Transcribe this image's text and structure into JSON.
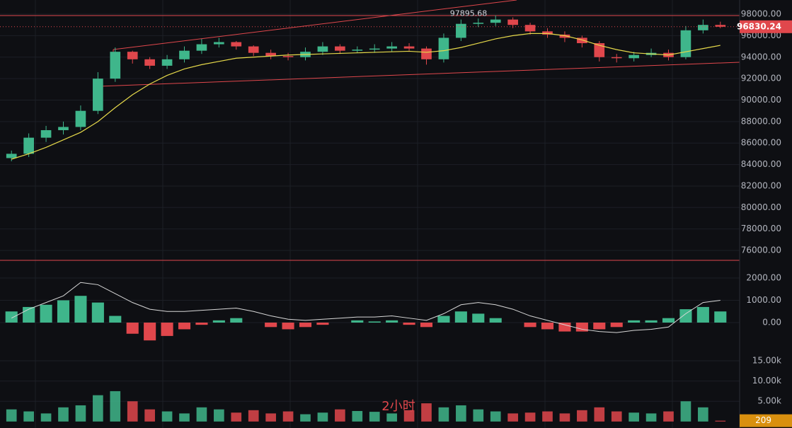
{
  "chart_data": [
    {
      "type": "candlestick",
      "grid": true,
      "up_color": "#3fb68b",
      "down_color": "#e0474c",
      "ma_color": "#e6d94a",
      "ylim": [
        75080,
        99320
      ],
      "yticks": [
        {
          "value": 76000,
          "label": "76000.00"
        },
        {
          "value": 78000,
          "label": "78000.00"
        },
        {
          "value": 80000,
          "label": "80000.00"
        },
        {
          "value": 82000,
          "label": "82000.00"
        },
        {
          "value": 84000,
          "label": "84000.00"
        },
        {
          "value": 86000,
          "label": "86000.00"
        },
        {
          "value": 88000,
          "label": "88000.00"
        },
        {
          "value": 90000,
          "label": "90000.00"
        },
        {
          "value": 92000,
          "label": "92000.00"
        },
        {
          "value": 94000,
          "label": "94000.00"
        },
        {
          "value": 96000,
          "label": "96000.00"
        },
        {
          "value": 98000,
          "label": "98000.00"
        }
      ],
      "open": [
        84600,
        85000,
        86500,
        87200,
        87500,
        89000,
        92000,
        94500,
        93800,
        93200,
        93800,
        94600,
        95200,
        95400,
        95000,
        94400,
        94100,
        94000,
        94500,
        95000,
        94600,
        94700,
        94800,
        95000,
        94800,
        93800,
        95800,
        97100,
        97200,
        97500,
        97000,
        96400,
        96100,
        95800,
        95300,
        94000,
        93900,
        94200,
        94400,
        94000,
        96500,
        97000
      ],
      "high": [
        85300,
        86900,
        87600,
        88000,
        89500,
        92600,
        94900,
        94600,
        94000,
        94200,
        95000,
        95700,
        95800,
        95500,
        95100,
        94700,
        94400,
        94900,
        95400,
        95200,
        95000,
        95200,
        95400,
        95300,
        95000,
        96200,
        97500,
        97600,
        97895.68,
        97700,
        97200,
        96700,
        96400,
        96000,
        95500,
        94300,
        94500,
        94800,
        94700,
        96900,
        97500,
        97300
      ],
      "low": [
        84300,
        84700,
        86100,
        86800,
        87200,
        88700,
        91700,
        93400,
        92900,
        92900,
        93500,
        94300,
        94900,
        94700,
        94100,
        93800,
        93700,
        93700,
        94200,
        94300,
        94400,
        94400,
        94500,
        94600,
        93300,
        93500,
        95500,
        96800,
        96900,
        96700,
        96100,
        95800,
        95400,
        94900,
        93600,
        93500,
        93600,
        94000,
        93700,
        93800,
        96200,
        96700
      ],
      "close": [
        85000,
        86500,
        87200,
        87500,
        89000,
        92000,
        94500,
        93800,
        93200,
        93800,
        94600,
        95200,
        95400,
        95000,
        94400,
        94100,
        94000,
        94500,
        95000,
        94600,
        94700,
        94800,
        95000,
        94800,
        93800,
        95800,
        97100,
        97200,
        97500,
        97000,
        96400,
        96100,
        95800,
        95300,
        94000,
        93900,
        94200,
        94400,
        94000,
        96500,
        97000,
        96830.24
      ],
      "ma": [
        84500,
        85000,
        85600,
        86300,
        87000,
        88000,
        89300,
        90500,
        91500,
        92300,
        92900,
        93300,
        93600,
        93900,
        94000,
        94100,
        94200,
        94250,
        94300,
        94350,
        94400,
        94450,
        94500,
        94550,
        94450,
        94600,
        94900,
        95300,
        95700,
        96000,
        96200,
        96200,
        96000,
        95600,
        95100,
        94700,
        94400,
        94300,
        94200,
        94500,
        94800,
        95100
      ]
    },
    {
      "type": "macd",
      "grid": true,
      "up_color": "#3fb68b",
      "down_color": "#e0474c",
      "dif_color": "#d8d8d8",
      "ylim": [
        -1397,
        2571
      ],
      "yticks": [
        {
          "value": 0,
          "label": "0.00"
        },
        {
          "value": 1000,
          "label": "1000.00"
        },
        {
          "value": 2000,
          "label": "2000.00"
        }
      ],
      "histogram": [
        500,
        700,
        800,
        1000,
        1200,
        900,
        300,
        -500,
        -800,
        -600,
        -300,
        -100,
        100,
        200,
        0,
        -200,
        -300,
        -200,
        -100,
        0,
        100,
        50,
        100,
        -100,
        -200,
        300,
        500,
        400,
        200,
        0,
        -200,
        -300,
        -400,
        -400,
        -300,
        -200,
        100,
        100,
        200,
        600,
        700,
        500
      ],
      "dif": [
        200,
        600,
        900,
        1200,
        1800,
        1700,
        1300,
        900,
        600,
        500,
        500,
        550,
        600,
        650,
        500,
        300,
        150,
        100,
        150,
        200,
        250,
        250,
        300,
        200,
        100,
        400,
        800,
        900,
        800,
        600,
        300,
        100,
        -100,
        -300,
        -400,
        -450,
        -350,
        -300,
        -200,
        400,
        900,
        1000
      ]
    },
    {
      "type": "volume",
      "grid": true,
      "timeframe": "2小时",
      "ylim": [
        -1600,
        16750
      ],
      "yticks": [
        {
          "value": 5000,
          "label": "5.00k"
        },
        {
          "value": 10000,
          "label": "10.00k"
        },
        {
          "value": 15000,
          "label": "15.00k"
        }
      ],
      "values": [
        3000,
        2500,
        2000,
        3500,
        4000,
        6500,
        7500,
        5000,
        3000,
        2500,
        2000,
        3500,
        3000,
        2200,
        2800,
        2000,
        2500,
        1800,
        2200,
        3000,
        2600,
        2400,
        2000,
        2800,
        4500,
        3500,
        4000,
        3000,
        2500,
        2000,
        2200,
        2500,
        2000,
        2800,
        3500,
        2500,
        2200,
        2000,
        2500,
        5000,
        3500,
        209
      ]
    }
  ]
}
